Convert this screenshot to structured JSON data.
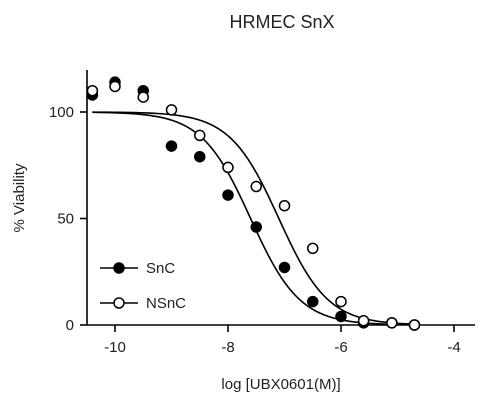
{
  "chart_data": {
    "type": "scatter",
    "title": "HRMEC SnX",
    "xlabel": "log [UBX0601(M)]",
    "ylabel": "% Viability",
    "xlim": [
      -11,
      -4
    ],
    "ylim": [
      0,
      120
    ],
    "xticks": [
      -10,
      -8,
      -6,
      -4
    ],
    "yticks": [
      0,
      50,
      100
    ],
    "xtick_labels": [
      "-10",
      "-8",
      "-6",
      "-4"
    ],
    "ytick_labels": [
      "0",
      "50",
      "100"
    ],
    "grid": false,
    "legend_position": "lower-left",
    "series": [
      {
        "name": "SnC",
        "marker": "filled-circle",
        "x": [
          -10.4,
          -10.0,
          -9.5,
          -9.0,
          -8.5,
          -8.0,
          -7.5,
          -7.0,
          -6.5,
          -6.0,
          -5.6,
          -5.1,
          -4.7
        ],
        "y": [
          108,
          114,
          110,
          84,
          79,
          61,
          46,
          27,
          11,
          4,
          1,
          1,
          0
        ],
        "fit": {
          "top": 100,
          "bottom": 0,
          "log_ic50": -7.6,
          "hill": 1.0
        }
      },
      {
        "name": "NSnC",
        "marker": "open-circle",
        "x": [
          -10.4,
          -10.0,
          -9.5,
          -9.0,
          -8.5,
          -8.0,
          -7.5,
          -7.0,
          -6.5,
          -6.0,
          -5.6,
          -5.1,
          -4.7
        ],
        "y": [
          110,
          112,
          107,
          101,
          89,
          74,
          65,
          56,
          36,
          11,
          2,
          1,
          0
        ],
        "fit": {
          "top": 100,
          "bottom": 0,
          "log_ic50": -7.1,
          "hill": 1.0
        }
      }
    ]
  }
}
